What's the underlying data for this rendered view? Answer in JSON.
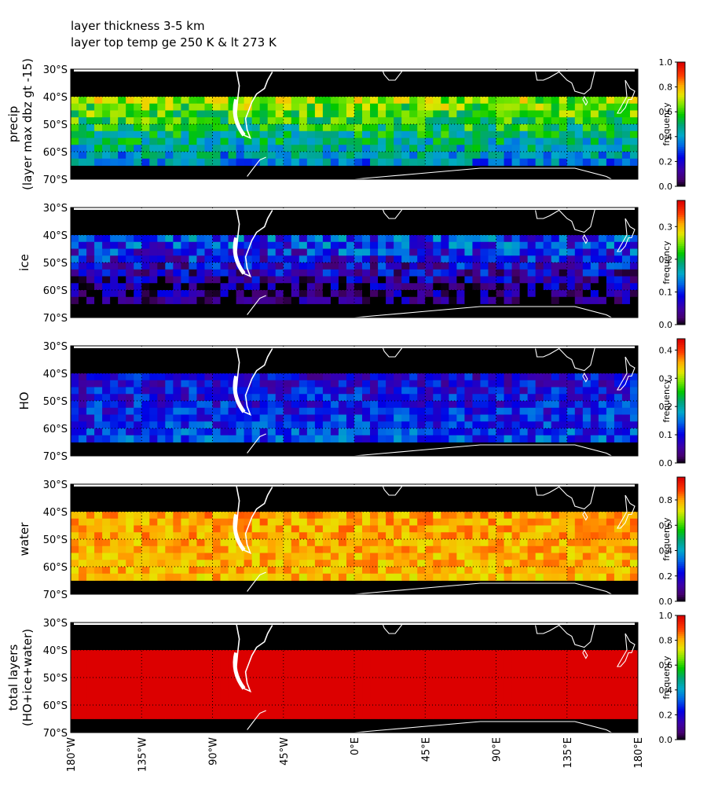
{
  "title_lines": [
    "layer thickness 3-5 km",
    "layer top temp ge 250 K & lt 273 K"
  ],
  "chart_data": [
    {
      "type": "heatmap",
      "ylabel": [
        "precip",
        "(layer max dbz gt -15)"
      ],
      "colorbar_label": "frequency",
      "colorbar_range": [
        0,
        1.0
      ],
      "colorbar_ticks": [
        "0.0",
        "0.2",
        "0.4",
        "0.6",
        "0.8",
        "1.0"
      ],
      "base": 0.68,
      "trend": -0.3,
      "noise": 0.13
    },
    {
      "type": "heatmap",
      "ylabel": [
        "ice"
      ],
      "colorbar_label": "frequency",
      "colorbar_range": [
        0,
        0.38
      ],
      "colorbar_ticks": [
        "0.0",
        "0.1",
        "0.2",
        "0.3"
      ],
      "base": 0.12,
      "trend": -0.1,
      "noise": 0.06
    },
    {
      "type": "heatmap",
      "ylabel": [
        "HO"
      ],
      "colorbar_label": "frequency",
      "colorbar_range": [
        0,
        0.44
      ],
      "colorbar_ticks": [
        "0.0",
        "0.1",
        "0.2",
        "0.3",
        "0.4"
      ],
      "base": 0.09,
      "trend": 0.04,
      "noise": 0.05
    },
    {
      "type": "heatmap",
      "ylabel": [
        "water"
      ],
      "colorbar_label": "frequency",
      "colorbar_range": [
        0,
        0.98
      ],
      "colorbar_ticks": [
        "0.0",
        "0.2",
        "0.4",
        "0.6",
        "0.8"
      ],
      "base": 0.8,
      "trend": -0.02,
      "noise": 0.07
    },
    {
      "type": "heatmap",
      "ylabel": [
        "total layers",
        "(HO+ice+water)"
      ],
      "colorbar_label": "frequency",
      "colorbar_range": [
        0,
        1.0
      ],
      "colorbar_ticks": [
        "0.0",
        "0.2",
        "0.4",
        "0.6",
        "0.8",
        "1.0"
      ],
      "base": 1.0,
      "trend": 0.0,
      "noise": 0.0
    }
  ],
  "shared_axes": {
    "lat_range": [
      -70,
      -30
    ],
    "lon_range": [
      -180,
      180
    ],
    "data_lat_range": [
      -65,
      -40
    ],
    "y_ticks": [
      "30°S",
      "40°S",
      "50°S",
      "60°S",
      "70°S"
    ],
    "y_tick_values": [
      -30,
      -40,
      -50,
      -60,
      -70
    ],
    "x_ticks": [
      "180°W",
      "135°W",
      "90°W",
      "45°W",
      "0°E",
      "45°E",
      "90°E",
      "135°E",
      "180°E"
    ],
    "x_tick_values": [
      -180,
      -135,
      -90,
      -45,
      0,
      45,
      90,
      135,
      180
    ],
    "cell_deg_lon": 5,
    "cell_deg_lat": 2.5,
    "coastline_color": "#ffffff",
    "no_data_color": "#000000",
    "grid_style": "dotted"
  }
}
